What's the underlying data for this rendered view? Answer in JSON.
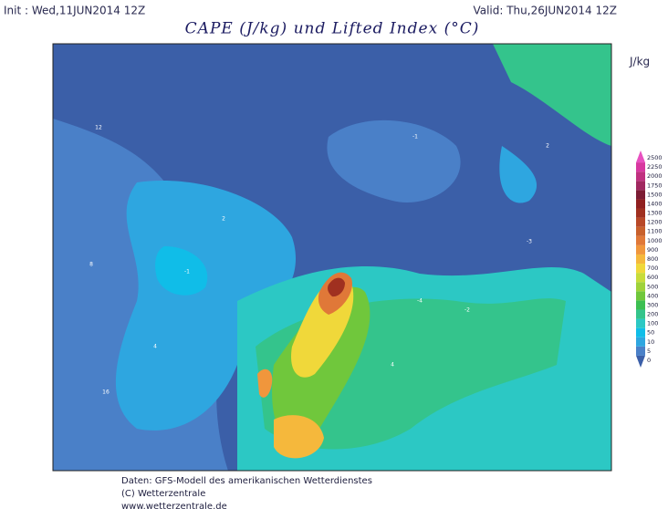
{
  "header": {
    "init": "Init : Wed,11JUN2014 12Z",
    "valid": "Valid: Thu,26JUN2014 12Z",
    "title": "CAPE (J/kg) und Lifted Index (°C)"
  },
  "colorbar": {
    "unit": "J/kg",
    "levels": [
      0,
      5,
      10,
      50,
      100,
      200,
      300,
      400,
      500,
      600,
      700,
      800,
      900,
      1000,
      1100,
      1200,
      1300,
      1400,
      1500,
      1750,
      2000,
      2250,
      2500
    ],
    "colors": [
      "#3b5fa8",
      "#4a80c8",
      "#2ea6e0",
      "#10bde8",
      "#2cc8c4",
      "#34c48c",
      "#3cbf52",
      "#70c73c",
      "#9fd23a",
      "#c8dc3a",
      "#f0d83a",
      "#f5b83c",
      "#f0963c",
      "#e07838",
      "#c8602c",
      "#b84828",
      "#a03020",
      "#902020",
      "#7c1c34",
      "#a02860",
      "#c03080",
      "#d838a0",
      "#e850c0"
    ]
  },
  "contour_labels": [
    "-1",
    "-2",
    "-3",
    "-4",
    "2",
    "4",
    "8",
    "12",
    "16",
    "-1",
    "2",
    "4"
  ],
  "footer": {
    "line1": "Daten: GFS-Modell des amerikanischen Wetterdienstes",
    "line2": "(C) Wetterzentrale",
    "line3": "www.wetterzentrale.de"
  }
}
